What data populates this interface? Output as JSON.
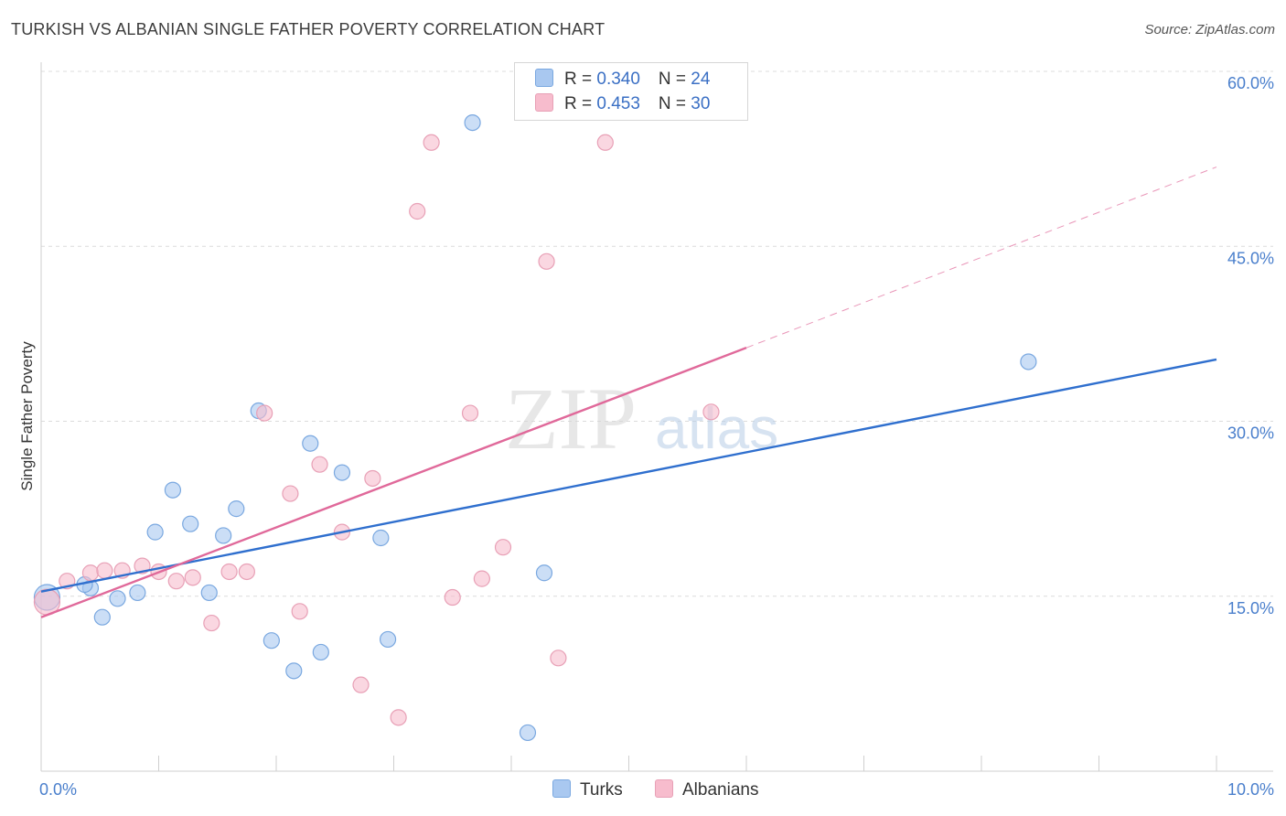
{
  "header": {
    "title": "TURKISH VS ALBANIAN SINGLE FATHER POVERTY CORRELATION CHART",
    "source": "Source: ZipAtlas.com"
  },
  "watermark": {
    "zip": "ZIP",
    "atlas": "atlas"
  },
  "legend": {
    "rows": [
      {
        "r_label": "R = ",
        "r_value": "0.340",
        "n_label": "N = ",
        "n_value": "24",
        "color": "#a9c8f0",
        "border": "#7aa8e0"
      },
      {
        "r_label": "R = ",
        "r_value": "0.453",
        "n_label": "N = ",
        "n_value": "30",
        "color": "#f7bccd",
        "border": "#e8a0b6"
      }
    ]
  },
  "bottom_legend": {
    "turks": "Turks",
    "albanians": "Albanians"
  },
  "chart_data": {
    "type": "scatter",
    "title": "TURKISH VS ALBANIAN SINGLE FATHER POVERTY CORRELATION CHART",
    "xlabel": "",
    "ylabel": "Single Father Poverty",
    "xlim": [
      0,
      10
    ],
    "ylim": [
      0,
      60
    ],
    "x_tick_labels": [
      "0.0%",
      "10.0%"
    ],
    "y_ticks": [
      15,
      30,
      45,
      60
    ],
    "y_tick_labels": [
      "15.0%",
      "30.0%",
      "45.0%",
      "60.0%"
    ],
    "grid": true,
    "legend_position": "top-center",
    "series": [
      {
        "name": "Turks",
        "color": "#a9c8f0",
        "stroke": "#7aa8e0",
        "line_color": "#2f6fce",
        "trend": {
          "x": [
            0,
            10
          ],
          "y": [
            15.4,
            35.3
          ],
          "dashed_from": null
        },
        "points": [
          [
            0.05,
            14.9
          ],
          [
            0.42,
            15.7
          ],
          [
            0.37,
            16.0
          ],
          [
            0.52,
            13.2
          ],
          [
            0.65,
            14.8
          ],
          [
            0.82,
            15.3
          ],
          [
            0.97,
            20.5
          ],
          [
            1.12,
            24.1
          ],
          [
            1.27,
            21.2
          ],
          [
            1.43,
            15.3
          ],
          [
            1.55,
            20.2
          ],
          [
            1.66,
            22.5
          ],
          [
            1.85,
            30.9
          ],
          [
            1.96,
            11.2
          ],
          [
            2.15,
            8.6
          ],
          [
            2.29,
            28.1
          ],
          [
            2.38,
            10.2
          ],
          [
            2.56,
            25.6
          ],
          [
            2.89,
            20.0
          ],
          [
            2.95,
            11.3
          ],
          [
            3.67,
            55.6
          ],
          [
            4.14,
            3.3
          ],
          [
            4.28,
            17.0
          ],
          [
            8.4,
            35.1
          ]
        ]
      },
      {
        "name": "Albanians",
        "color": "#f7bccd",
        "stroke": "#e8a0b6",
        "line_color": "#e0699a",
        "trend": {
          "x": [
            0,
            6.0,
            10
          ],
          "y": [
            13.2,
            36.3,
            51.8
          ]
        },
        "points": [
          [
            0.05,
            14.5
          ],
          [
            0.22,
            16.3
          ],
          [
            0.42,
            17.0
          ],
          [
            0.54,
            17.2
          ],
          [
            0.69,
            17.2
          ],
          [
            0.86,
            17.6
          ],
          [
            1.0,
            17.1
          ],
          [
            1.15,
            16.3
          ],
          [
            1.29,
            16.6
          ],
          [
            1.45,
            12.7
          ],
          [
            1.6,
            17.1
          ],
          [
            1.75,
            17.1
          ],
          [
            1.9,
            30.7
          ],
          [
            2.12,
            23.8
          ],
          [
            2.2,
            13.7
          ],
          [
            2.37,
            26.3
          ],
          [
            2.56,
            20.5
          ],
          [
            2.72,
            7.4
          ],
          [
            2.82,
            25.1
          ],
          [
            3.04,
            4.6
          ],
          [
            3.2,
            48.0
          ],
          [
            3.32,
            53.9
          ],
          [
            3.5,
            14.9
          ],
          [
            3.65,
            30.7
          ],
          [
            3.75,
            16.5
          ],
          [
            3.93,
            19.2
          ],
          [
            4.3,
            43.7
          ],
          [
            4.4,
            9.7
          ],
          [
            4.8,
            53.9
          ],
          [
            5.7,
            30.8
          ]
        ]
      }
    ]
  }
}
